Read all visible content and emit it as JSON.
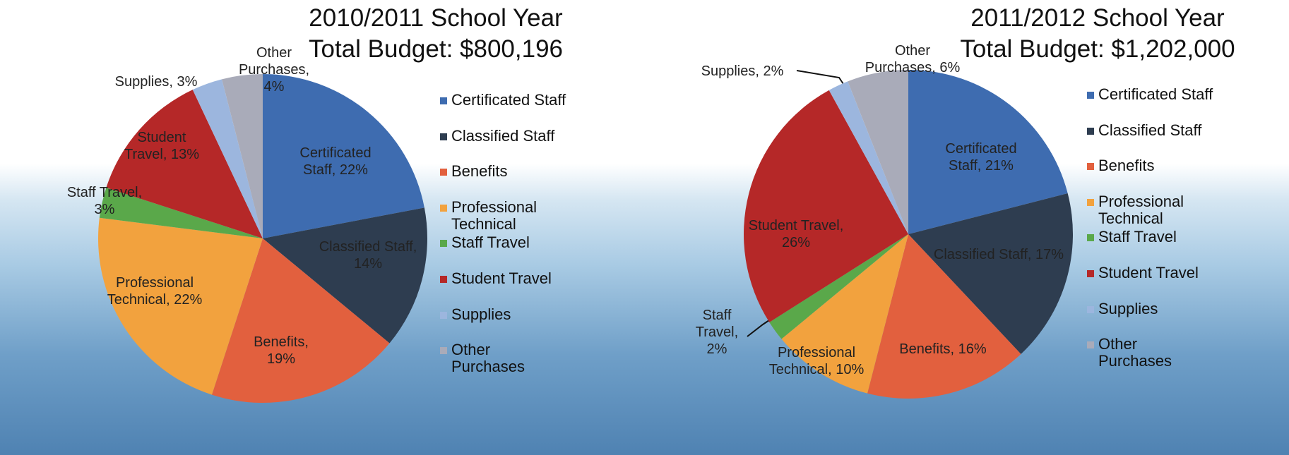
{
  "chart_data": [
    {
      "type": "pie",
      "title": "2010/2011 School Year",
      "subtitle": "Total Budget: $800,196",
      "categories": [
        "Certificated Staff",
        "Classified Staff",
        "Benefits",
        "Professional Technical",
        "Staff Travel",
        "Student Travel",
        "Supplies",
        "Other Purchases"
      ],
      "values": [
        22,
        14,
        19,
        22,
        3,
        13,
        3,
        4
      ],
      "value_labels": [
        "Certificated Staff, 22%",
        "Classified Staff, 14%",
        "Benefits, 19%",
        "Professional Technical, 22%",
        "Staff Travel, 3%",
        "Student Travel, 13%",
        "Supplies, 3%",
        "Other Purchases, 4%"
      ],
      "colors": [
        "#3e6cb0",
        "#2e3d50",
        "#e2603e",
        "#f2a23e",
        "#5aa84a",
        "#b52828",
        "#9cb6de",
        "#a9abb9"
      ],
      "legend": "right"
    },
    {
      "type": "pie",
      "title": "2011/2012 School Year",
      "subtitle": "Total Budget: $1,202,000",
      "categories": [
        "Certificated Staff",
        "Classified Staff",
        "Benefits",
        "Professional Technical",
        "Staff Travel",
        "Student Travel",
        "Supplies",
        "Other Purchases"
      ],
      "values": [
        21,
        17,
        16,
        10,
        2,
        26,
        2,
        6
      ],
      "value_labels": [
        "Certificated Staff, 21%",
        "Classified Staff, 17%",
        "Benefits, 16%",
        "Professional Technical, 10%",
        "Staff Travel, 2%",
        "Student Travel, 26%",
        "Supplies, 2%",
        "Other Purchases, 6%"
      ],
      "colors": [
        "#3e6cb0",
        "#2e3d50",
        "#e2603e",
        "#f2a23e",
        "#5aa84a",
        "#b52828",
        "#9cb6de",
        "#a9abb9"
      ],
      "legend": "right"
    }
  ]
}
